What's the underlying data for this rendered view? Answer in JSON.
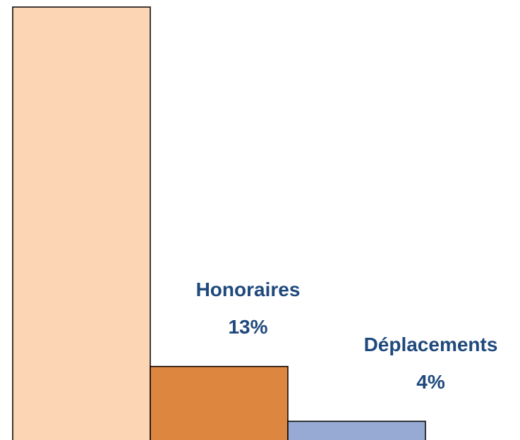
{
  "chart_data": {
    "type": "bar",
    "categories": [
      null,
      "Honoraires",
      "Déplacements"
    ],
    "values": [
      72,
      13,
      4
    ],
    "value_labels": [
      null,
      "13%",
      "4%"
    ],
    "colors": [
      "#fcd5b5",
      "#dd8640",
      "#96aad3"
    ],
    "label_color": "#1f497d",
    "ylim": [
      0,
      72
    ]
  }
}
